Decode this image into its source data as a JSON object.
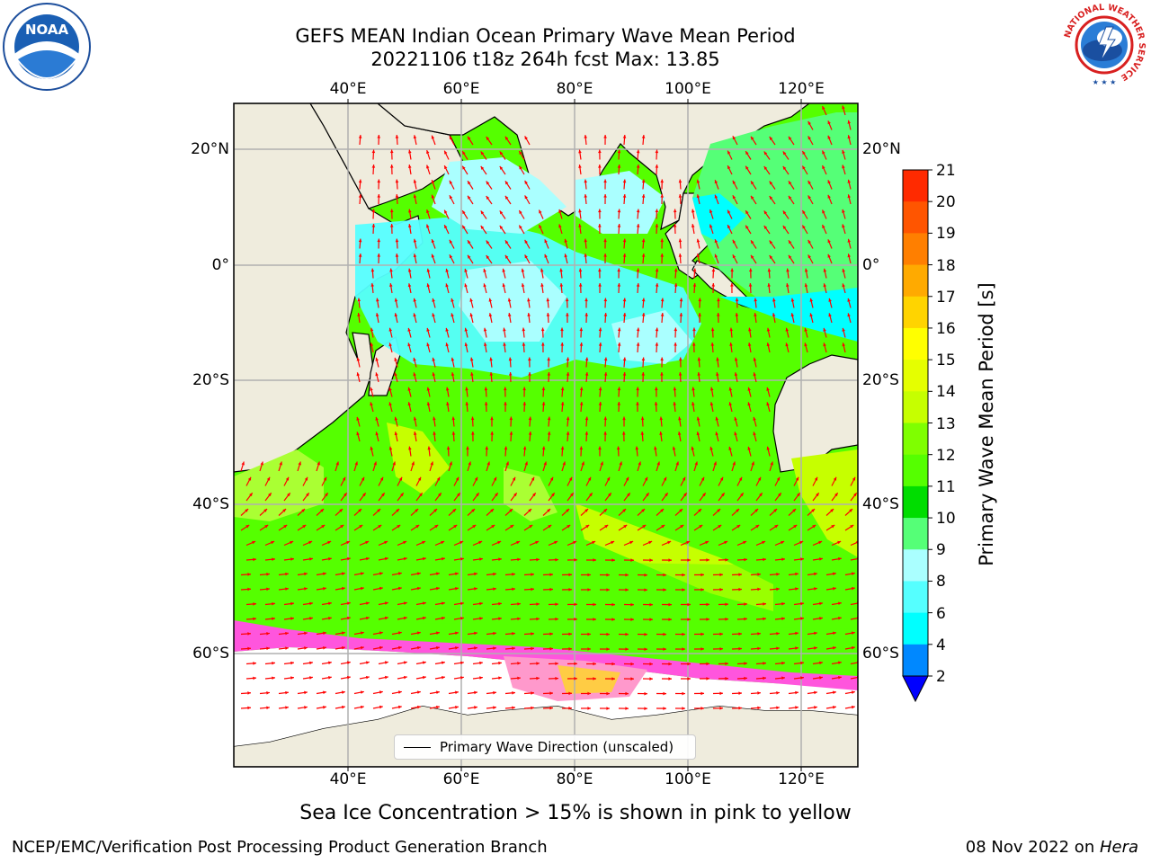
{
  "title": {
    "line1": "GEFS MEAN Indian Ocean Primary Wave Mean Period",
    "line2": "20221106 t18z 264h fcst   Max: 13.85"
  },
  "logos": {
    "noaa_text": "NOAA",
    "noaa_ring": "NATIONAL OCEANIC AND ATMOSPHERIC ADMINISTRATION · U.S. DEPARTMENT OF COMMERCE",
    "nws_ring": "NATIONAL WEATHER SERVICE"
  },
  "map": {
    "lon_ticks": [
      "40°E",
      "60°E",
      "80°E",
      "100°E",
      "120°E"
    ],
    "lat_ticks": [
      "20°N",
      "0°",
      "20°S",
      "40°S",
      "60°S"
    ],
    "colors": {
      "land": "#efecdd",
      "ice": "#ffffff",
      "arrow": "#ff0000",
      "coast": "#000000",
      "grid": "#b0b0b0"
    },
    "legend_label": "Primary Wave Direction (unscaled)"
  },
  "colorbar": {
    "title": "Primary Wave Mean Period [s]",
    "labels": [
      "21",
      "20",
      "19",
      "18",
      "17",
      "16",
      "15",
      "14",
      "13",
      "12",
      "11",
      "10",
      "9",
      "8",
      "6",
      "4",
      "2"
    ],
    "colors": [
      "#ff0000",
      "#ff2a00",
      "#ff5500",
      "#ff7f00",
      "#ffaa00",
      "#ffd400",
      "#ffff00",
      "#e5ff00",
      "#c6ff00",
      "#7fff00",
      "#55ff00",
      "#00dd00",
      "#55ff77",
      "#aaffff",
      "#55ffff",
      "#00ffff",
      "#0088ff",
      "#0000ff"
    ],
    "under_color": "#0000ff"
  },
  "caption": "Sea Ice Concentration > 15% is shown in pink to yellow",
  "footer": {
    "left": "NCEP/EMC/Verification Post Processing Product Generation Branch",
    "date": "08 Nov 2022 on ",
    "machine": "Hera"
  }
}
